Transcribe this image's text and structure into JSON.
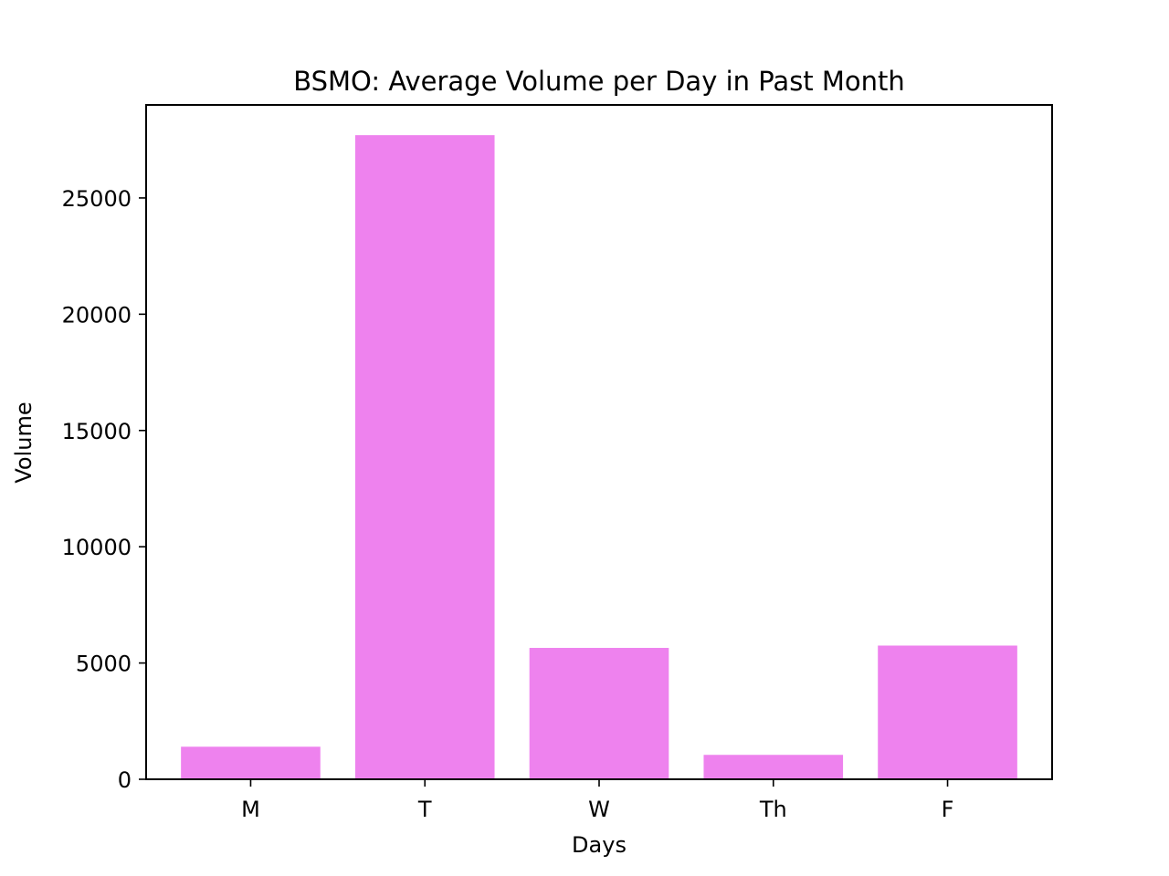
{
  "chart_data": {
    "type": "bar",
    "title": "BSMO: Average Volume per Day in Past Month",
    "xlabel": "Days",
    "ylabel": "Volume",
    "categories": [
      "M",
      "T",
      "W",
      "Th",
      "F"
    ],
    "values": [
      1400,
      27700,
      5650,
      1050,
      5750
    ],
    "ylim": [
      0,
      29000
    ],
    "yticks": [
      0,
      5000,
      10000,
      15000,
      20000,
      25000
    ],
    "grid": false,
    "legend": "none",
    "bar_color": "#ee82ee"
  }
}
